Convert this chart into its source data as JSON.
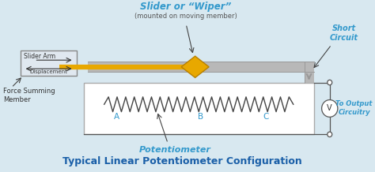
{
  "bg_color": "#d8e8f0",
  "title": "Typical Linear Potentiometer Configuration",
  "title_color": "#1a5fa8",
  "title_fontsize": 9,
  "slider_label": "Slider or “Wiper”",
  "slider_sublabel": "(mounted on moving member)",
  "short_circuit_label": "Short\nCircuit",
  "force_member_label": "Force Summing\nMember",
  "slider_arm_label": "Slider Arm",
  "displacement_label": "Displacement",
  "potentiometer_label": "Potentiometer",
  "output_label": "To Output\nCircuitry",
  "label_A": "A",
  "label_B": "B",
  "label_C": "C",
  "gold_color": "#e8a800",
  "gray_color": "#999999",
  "light_gray": "#b8b8b8",
  "cyan_color": "#3399cc",
  "box_fill": "#e0e8f0",
  "wire_color": "#555555",
  "resistor_color": "#444444",
  "white": "#ffffff"
}
